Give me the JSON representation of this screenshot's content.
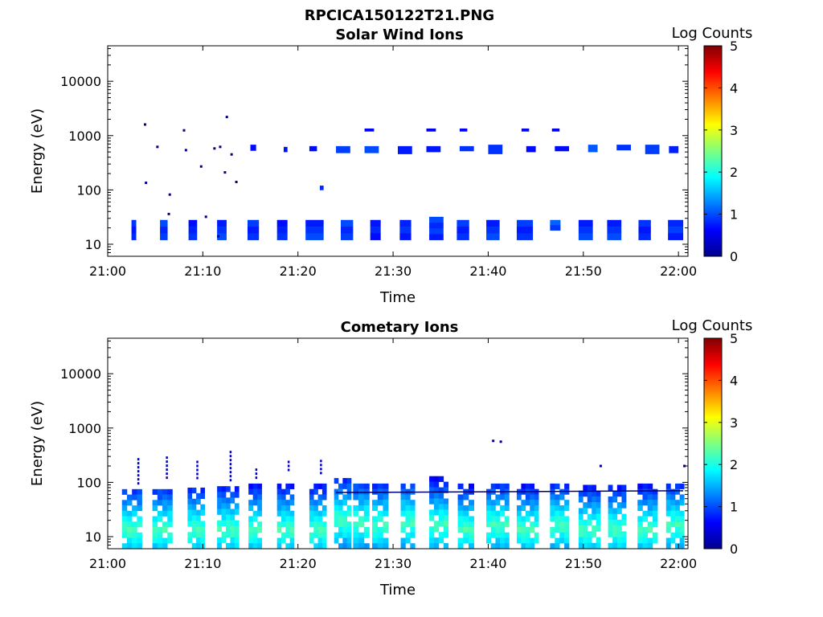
{
  "figure": {
    "title": "RPCICA150122T21.PNG"
  },
  "chart_data": [
    {
      "type": "heatmap",
      "title": "Solar Wind Ions",
      "xlabel": "Time",
      "ylabel": "Energy (eV)",
      "x_range": [
        "21:00",
        "22:01"
      ],
      "y_range": [
        6,
        45000
      ],
      "y_scale": "log",
      "x_ticks": [
        "21:00",
        "21:10",
        "21:20",
        "21:30",
        "21:40",
        "21:50",
        "22:00"
      ],
      "y_ticks": [
        "10",
        "100",
        "1000",
        "10000"
      ],
      "colorbar": {
        "label": "Log Counts",
        "range": [
          0,
          5
        ],
        "ticks": [
          "0",
          "1",
          "2",
          "3",
          "4",
          "5"
        ],
        "colormap": "jet"
      },
      "blocks": [
        {
          "t": [
            2.5,
            3.0
          ],
          "e": [
            12,
            28
          ],
          "v": 0.5
        },
        {
          "t": [
            5.5,
            6.3
          ],
          "e": [
            12,
            28
          ],
          "v": 0.6
        },
        {
          "t": [
            8.5,
            9.4
          ],
          "e": [
            12,
            28
          ],
          "v": 0.5
        },
        {
          "t": [
            11.5,
            12.5
          ],
          "e": [
            12,
            28
          ],
          "v": 0.6
        },
        {
          "t": [
            14.7,
            15.9
          ],
          "e": [
            12,
            28
          ],
          "v": 0.6
        },
        {
          "t": [
            17.8,
            18.9
          ],
          "e": [
            12,
            28
          ],
          "v": 0.5
        },
        {
          "t": [
            20.8,
            22.7
          ],
          "e": [
            12,
            28
          ],
          "v": 0.6
        },
        {
          "t": [
            24.5,
            25.8
          ],
          "e": [
            12,
            28
          ],
          "v": 0.6
        },
        {
          "t": [
            27.6,
            28.7
          ],
          "e": [
            12,
            28
          ],
          "v": 0.5
        },
        {
          "t": [
            30.7,
            31.9
          ],
          "e": [
            12,
            28
          ],
          "v": 0.5
        },
        {
          "t": [
            33.8,
            35.3
          ],
          "e": [
            12,
            32
          ],
          "v": 0.6
        },
        {
          "t": [
            36.7,
            38.0
          ],
          "e": [
            12,
            28
          ],
          "v": 0.6
        },
        {
          "t": [
            39.8,
            41.2
          ],
          "e": [
            12,
            28
          ],
          "v": 0.6
        },
        {
          "t": [
            43.0,
            44.7
          ],
          "e": [
            12,
            28
          ],
          "v": 0.6
        },
        {
          "t": [
            46.5,
            47.6
          ],
          "e": [
            18,
            28
          ],
          "v": 0.7
        },
        {
          "t": [
            49.5,
            51.0
          ],
          "e": [
            12,
            28
          ],
          "v": 0.6
        },
        {
          "t": [
            52.5,
            54.0
          ],
          "e": [
            12,
            28
          ],
          "v": 0.6
        },
        {
          "t": [
            55.8,
            57.1
          ],
          "e": [
            12,
            28
          ],
          "v": 0.5
        },
        {
          "t": [
            58.9,
            60.5
          ],
          "e": [
            12,
            28
          ],
          "v": 0.6
        },
        {
          "t": [
            15.0,
            15.6
          ],
          "e": [
            530,
            680
          ],
          "v": 0.4
        },
        {
          "t": [
            18.5,
            18.9
          ],
          "e": [
            500,
            620
          ],
          "v": 0.4
        },
        {
          "t": [
            21.2,
            22.0
          ],
          "e": [
            520,
            640
          ],
          "v": 0.5
        },
        {
          "t": [
            24.0,
            25.5
          ],
          "e": [
            480,
            640
          ],
          "v": 0.6
        },
        {
          "t": [
            27.0,
            28.5
          ],
          "e": [
            480,
            640
          ],
          "v": 0.6
        },
        {
          "t": [
            30.5,
            32.0
          ],
          "e": [
            460,
            640
          ],
          "v": 0.6
        },
        {
          "t": [
            33.5,
            35.0
          ],
          "e": [
            500,
            640
          ],
          "v": 0.5
        },
        {
          "t": [
            37.0,
            38.5
          ],
          "e": [
            520,
            640
          ],
          "v": 0.6
        },
        {
          "t": [
            40.0,
            41.5
          ],
          "e": [
            460,
            680
          ],
          "v": 0.6
        },
        {
          "t": [
            44.0,
            45.0
          ],
          "e": [
            500,
            640
          ],
          "v": 0.5
        },
        {
          "t": [
            47.0,
            48.5
          ],
          "e": [
            520,
            640
          ],
          "v": 0.5
        },
        {
          "t": [
            50.5,
            51.5
          ],
          "e": [
            500,
            680
          ],
          "v": 0.8
        },
        {
          "t": [
            53.5,
            55.0
          ],
          "e": [
            540,
            680
          ],
          "v": 0.6
        },
        {
          "t": [
            56.5,
            58.0
          ],
          "e": [
            460,
            680
          ],
          "v": 0.6
        },
        {
          "t": [
            59.0,
            60.0
          ],
          "e": [
            480,
            640
          ],
          "v": 0.5
        },
        {
          "t": [
            27.0,
            28.0
          ],
          "e": [
            1200,
            1350
          ],
          "v": 0.3
        },
        {
          "t": [
            33.5,
            34.5
          ],
          "e": [
            1200,
            1350
          ],
          "v": 0.3
        },
        {
          "t": [
            37.0,
            37.8
          ],
          "e": [
            1200,
            1350
          ],
          "v": 0.3
        },
        {
          "t": [
            43.5,
            44.3
          ],
          "e": [
            1200,
            1350
          ],
          "v": 0.3
        },
        {
          "t": [
            46.7,
            47.5
          ],
          "e": [
            1200,
            1350
          ],
          "v": 0.3
        },
        {
          "t": [
            22.3,
            22.7
          ],
          "e": [
            100,
            120
          ],
          "v": 0.5
        }
      ],
      "dots": [
        {
          "t": 3.9,
          "e": 1600
        },
        {
          "t": 4.0,
          "e": 135
        },
        {
          "t": 5.2,
          "e": 620
        },
        {
          "t": 6.5,
          "e": 82
        },
        {
          "t": 6.4,
          "e": 36
        },
        {
          "t": 8.0,
          "e": 1250
        },
        {
          "t": 8.2,
          "e": 540
        },
        {
          "t": 9.8,
          "e": 270
        },
        {
          "t": 10.3,
          "e": 32
        },
        {
          "t": 11.2,
          "e": 580
        },
        {
          "t": 11.8,
          "e": 620
        },
        {
          "t": 12.3,
          "e": 210
        },
        {
          "t": 12.5,
          "e": 2200
        },
        {
          "t": 13.0,
          "e": 450
        },
        {
          "t": 13.5,
          "e": 140
        },
        {
          "t": 11.6,
          "e": 14
        }
      ]
    },
    {
      "type": "heatmap",
      "title": "Cometary Ions",
      "xlabel": "Time",
      "ylabel": "Energy (eV)",
      "x_range": [
        "21:00",
        "22:01"
      ],
      "y_range": [
        6,
        45000
      ],
      "y_scale": "log",
      "x_ticks": [
        "21:00",
        "21:10",
        "21:20",
        "21:30",
        "21:40",
        "21:50",
        "22:00"
      ],
      "y_ticks": [
        "10",
        "100",
        "1000",
        "10000"
      ],
      "colorbar": {
        "label": "Log Counts",
        "range": [
          0,
          5
        ],
        "ticks": [
          "0",
          "1",
          "2",
          "3",
          "4",
          "5"
        ],
        "colormap": "jet"
      },
      "columns": [
        {
          "t": [
            1.5,
            3.6
          ],
          "top": 75,
          "peak": 15
        },
        {
          "t": [
            4.7,
            6.8
          ],
          "top": 75,
          "peak": 15
        },
        {
          "t": [
            8.4,
            10.2
          ],
          "top": 80,
          "peak": 15
        },
        {
          "t": [
            11.5,
            13.8
          ],
          "top": 85,
          "peak": 15
        },
        {
          "t": [
            14.8,
            16.2
          ],
          "top": 95,
          "peak": 15
        },
        {
          "t": [
            17.8,
            19.6
          ],
          "top": 95,
          "peak": 15
        },
        {
          "t": [
            21.2,
            23.0
          ],
          "top": 95,
          "peak": 15
        },
        {
          "t": [
            23.8,
            25.6
          ],
          "top": 120,
          "peak": 22
        },
        {
          "t": [
            25.8,
            27.5
          ],
          "top": 95,
          "peak": 20
        },
        {
          "t": [
            27.8,
            29.5
          ],
          "top": 95,
          "peak": 18
        },
        {
          "t": [
            30.8,
            32.3
          ],
          "top": 95,
          "peak": 20
        },
        {
          "t": [
            33.8,
            35.8
          ],
          "top": 130,
          "peak": 18
        },
        {
          "t": [
            36.8,
            38.5
          ],
          "top": 95,
          "peak": 15
        },
        {
          "t": [
            39.8,
            42.2
          ],
          "top": 95,
          "peak": 18
        },
        {
          "t": [
            43.0,
            45.3
          ],
          "top": 95,
          "peak": 15
        },
        {
          "t": [
            46.5,
            48.5
          ],
          "top": 95,
          "peak": 18
        },
        {
          "t": [
            49.5,
            51.8
          ],
          "top": 90,
          "peak": 15
        },
        {
          "t": [
            52.6,
            54.5
          ],
          "top": 90,
          "peak": 15
        },
        {
          "t": [
            55.7,
            57.8
          ],
          "top": 95,
          "peak": 15
        },
        {
          "t": [
            58.7,
            60.6
          ],
          "top": 95,
          "peak": 18
        }
      ],
      "spikes": [
        {
          "t": 3.2,
          "e": [
            100,
            280
          ]
        },
        {
          "t": 6.2,
          "e": [
            110,
            300
          ]
        },
        {
          "t": 9.4,
          "e": [
            110,
            250
          ]
        },
        {
          "t": 12.9,
          "e": [
            100,
            380
          ]
        },
        {
          "t": 15.6,
          "e": [
            110,
            180
          ]
        },
        {
          "t": 19.0,
          "e": [
            150,
            250
          ]
        },
        {
          "t": 22.4,
          "e": [
            150,
            260
          ]
        }
      ],
      "dots": [
        {
          "t": 40.5,
          "e": 580
        },
        {
          "t": 41.3,
          "e": 560
        },
        {
          "t": 51.8,
          "e": 200
        },
        {
          "t": 60.6,
          "e": 200
        }
      ],
      "line": {
        "t": [
          24.0,
          60.5
        ],
        "e": [
          65,
          70
        ]
      }
    }
  ]
}
